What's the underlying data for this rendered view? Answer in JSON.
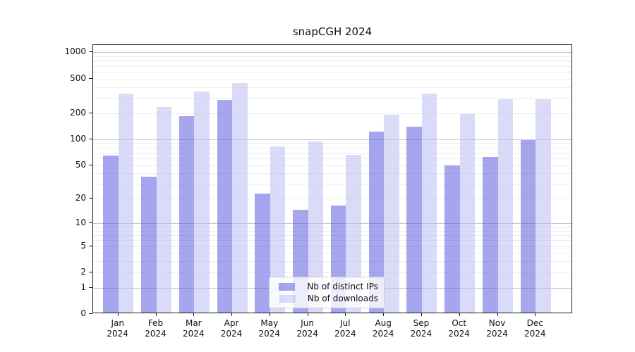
{
  "chart_data": {
    "type": "bar",
    "title": "snapCGH 2024",
    "y_scale": "log1p",
    "categories": [
      "Jan",
      "Feb",
      "Mar",
      "Apr",
      "May",
      "Jun",
      "Jul",
      "Aug",
      "Sep",
      "Oct",
      "Nov",
      "Dec"
    ],
    "x_sublabel": "2024",
    "series": [
      {
        "name": "Nb of distinct IPs",
        "color": "rgba(84,84,222,0.52)",
        "values": [
          62,
          35,
          178,
          275,
          22,
          14,
          16,
          117,
          135,
          48,
          60,
          95
        ]
      },
      {
        "name": "Nb of downloads",
        "color": "rgba(187,187,244,0.55)",
        "values": [
          325,
          228,
          345,
          430,
          80,
          91,
          63,
          185,
          322,
          187,
          277,
          280
        ]
      }
    ],
    "y_ticks": [
      0,
      1,
      2,
      5,
      10,
      20,
      50,
      100,
      200,
      500,
      1000
    ],
    "y_axis_top": 1212,
    "minor_gridlines": [
      2,
      3,
      4,
      5,
      6,
      7,
      8,
      9,
      20,
      30,
      40,
      50,
      60,
      70,
      80,
      90,
      200,
      300,
      400,
      500,
      600,
      700,
      800,
      900
    ],
    "major_gridlines": [
      1,
      10,
      100,
      1000
    ],
    "legend_position": "bottom-center",
    "colors": {
      "minor_grid": "#ededed",
      "major_grid": "#c6c6c6",
      "axis": "#1a1a1a",
      "background": "#ffffff"
    }
  }
}
